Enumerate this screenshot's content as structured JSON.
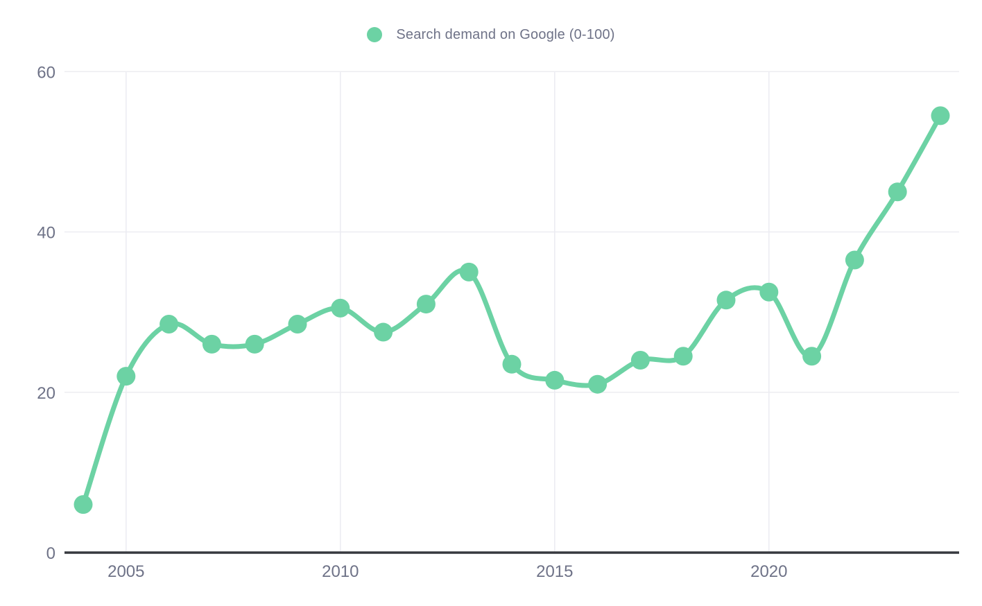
{
  "chart_data": {
    "type": "line",
    "title": "",
    "legend": "Search demand on Google (0-100)",
    "xlabel": "",
    "ylabel": "",
    "x": [
      2004,
      2005,
      2006,
      2007,
      2008,
      2009,
      2010,
      2011,
      2012,
      2013,
      2014,
      2015,
      2016,
      2017,
      2018,
      2019,
      2020,
      2021,
      2022,
      2023,
      2024
    ],
    "series": [
      {
        "name": "Search demand on Google (0-100)",
        "values": [
          6,
          22,
          28.5,
          26,
          26,
          28.5,
          30.5,
          27.5,
          31,
          35,
          23.5,
          21.5,
          21,
          24,
          24.5,
          31.5,
          32.5,
          24.5,
          36.5,
          45,
          54.5
        ]
      }
    ],
    "ylim": [
      0,
      60
    ],
    "y_ticks": [
      0,
      20,
      40,
      60
    ],
    "x_tick_years": [
      2005,
      2010,
      2015,
      2020
    ],
    "grid": true,
    "smooth": true,
    "legend_position": "top-center",
    "colors": {
      "series": "#6cd2a4",
      "tick_label": "#6e7287",
      "grid_line": "#ececf1",
      "axis_line": "#37393f",
      "background": "#ffffff"
    }
  }
}
